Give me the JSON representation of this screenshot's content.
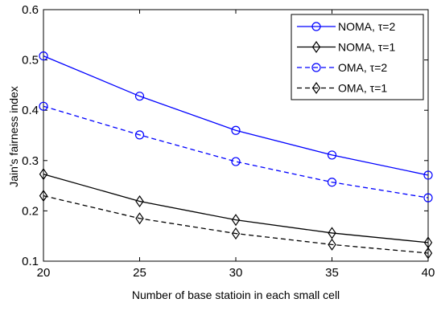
{
  "chart_data": {
    "type": "line",
    "title": "",
    "xlabel": "Number of base statioin in each small cell",
    "ylabel": "Jain's fairness index",
    "x": [
      20,
      25,
      30,
      35,
      40
    ],
    "xlim": [
      20,
      40
    ],
    "ylim": [
      0.1,
      0.6
    ],
    "xticks": [
      "20",
      "25",
      "30",
      "35",
      "40"
    ],
    "yticks": [
      "0.1",
      "0.2",
      "0.3",
      "0.4",
      "0.5",
      "0.6"
    ],
    "xtick_values": [
      20,
      25,
      30,
      35,
      40
    ],
    "ytick_values": [
      0.1,
      0.2,
      0.3,
      0.4,
      0.5,
      0.6
    ],
    "grid": false,
    "legend_position": "top-right",
    "series": [
      {
        "name": "NOMA, τ=2",
        "values": [
          0.508,
          0.428,
          0.36,
          0.311,
          0.271
        ],
        "color": "#0000ff",
        "dash": "solid",
        "marker": "circle"
      },
      {
        "name": "NOMA, τ=1",
        "values": [
          0.273,
          0.219,
          0.182,
          0.156,
          0.137
        ],
        "color": "#000000",
        "dash": "solid",
        "marker": "diamond"
      },
      {
        "name": "OMA, τ=2",
        "values": [
          0.408,
          0.351,
          0.298,
          0.257,
          0.226
        ],
        "color": "#0000ff",
        "dash": "dashed",
        "marker": "circle"
      },
      {
        "name": "OMA, τ=1",
        "values": [
          0.23,
          0.185,
          0.155,
          0.133,
          0.116
        ],
        "color": "#000000",
        "dash": "dashed",
        "marker": "diamond"
      }
    ]
  }
}
